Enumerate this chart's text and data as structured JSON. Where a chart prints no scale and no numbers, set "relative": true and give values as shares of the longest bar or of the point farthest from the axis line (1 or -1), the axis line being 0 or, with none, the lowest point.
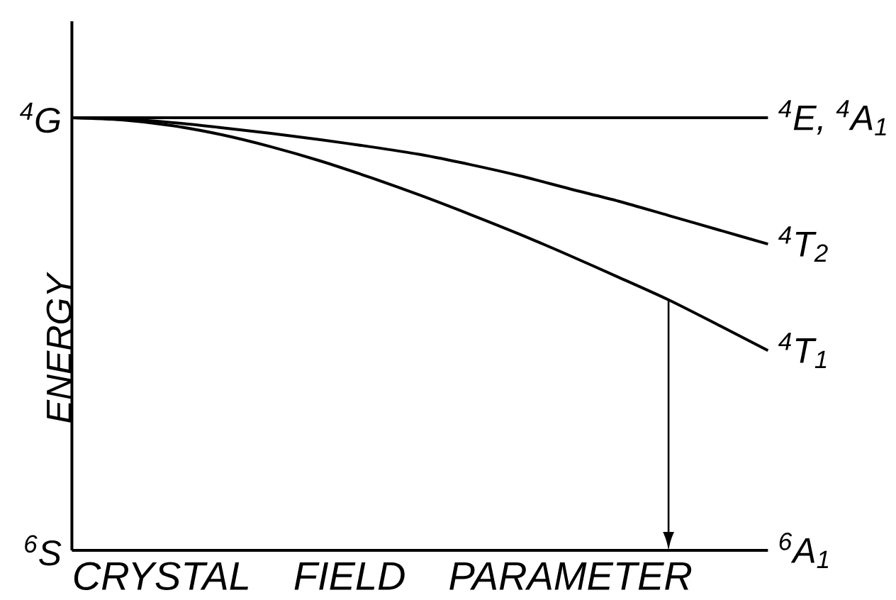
{
  "chart_data": {
    "type": "line",
    "relative": true,
    "xlabel": "CRYSTAL FIELD PARAMETER",
    "ylabel": "ENERGY",
    "categories": [
      null,
      null,
      null,
      null,
      null,
      null,
      null,
      null,
      null,
      null,
      null,
      null,
      null,
      null,
      null
    ],
    "series": [
      {
        "name": "$^{4}$E, $^{4}$A$_{1}$",
        "color": "#000000",
        "values": [
          1,
          1,
          1,
          1,
          1,
          1,
          1,
          1,
          1,
          1,
          1,
          1,
          1,
          1,
          1
        ]
      },
      {
        "name": "$^{4}$T$_{2}$",
        "color": "#000000",
        "values": [
          1,
          0.997,
          0.989,
          0.977,
          0.964,
          0.949,
          0.933,
          0.915,
          0.892,
          0.866,
          0.836,
          0.807,
          0.774,
          0.741,
          0.708
        ]
      },
      {
        "name": "$^{4}$T$_{1}$",
        "color": "#000000",
        "values": [
          1,
          0.995,
          0.982,
          0.961,
          0.933,
          0.9,
          0.862,
          0.821,
          0.777,
          0.731,
          0.682,
          0.631,
          0.579,
          0.521,
          0.462
        ]
      },
      {
        "name": "$^{6}$A$_{1}$",
        "color": "#000000",
        "values": [
          0,
          0,
          0,
          0,
          0,
          0,
          0,
          0,
          0,
          0,
          0,
          0,
          0,
          0,
          0
        ]
      }
    ],
    "annotations": [
      "$^{4}$G",
      "$^{6}$S"
    ]
  }
}
